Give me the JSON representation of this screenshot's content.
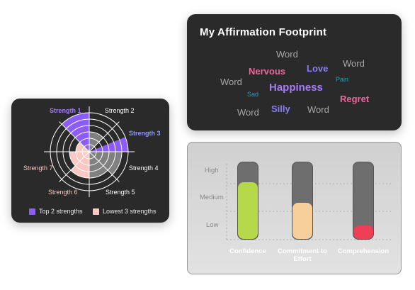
{
  "radar": {
    "labels": [
      "Strength 1",
      "Strength 2",
      "Strength 3",
      "Strength 4",
      "Strength 5",
      "Strength 6",
      "Strength 7"
    ],
    "legend": [
      {
        "label": "Top 2 strengths",
        "color": "#8b5cf6"
      },
      {
        "label": "Lowest 3 strengths",
        "color": "#f9c8c2"
      }
    ]
  },
  "cloud": {
    "title": "My Affirmation Footprint",
    "words": [
      {
        "text": "Word",
        "color": "#a8a8a8"
      },
      {
        "text": "Nervous",
        "color": "#e9679a"
      },
      {
        "text": "Love",
        "color": "#8b7cf6"
      },
      {
        "text": "Word",
        "color": "#a8a8a8"
      },
      {
        "text": "Word",
        "color": "#a8a8a8"
      },
      {
        "text": "Pain",
        "color": "#1aa6b7"
      },
      {
        "text": "Sad",
        "color": "#1aa6b7"
      },
      {
        "text": "Happiness",
        "color": "#a67cf6"
      },
      {
        "text": "Regret",
        "color": "#e9679a"
      },
      {
        "text": "Word",
        "color": "#a8a8a8"
      },
      {
        "text": "Silly",
        "color": "#8b7cf6"
      },
      {
        "text": "Word",
        "color": "#a8a8a8"
      }
    ]
  },
  "levels": {
    "axis": [
      "High",
      "Medium",
      "Low"
    ],
    "bars": [
      {
        "label": "Confidence",
        "level": 0.74,
        "color": "#b5d94a"
      },
      {
        "label": "Commitment to Effort",
        "level": 0.47,
        "color": "#f7cf9a"
      },
      {
        "label": "Comprehension",
        "level": 0.18,
        "color": "#ee3f55"
      }
    ]
  }
}
